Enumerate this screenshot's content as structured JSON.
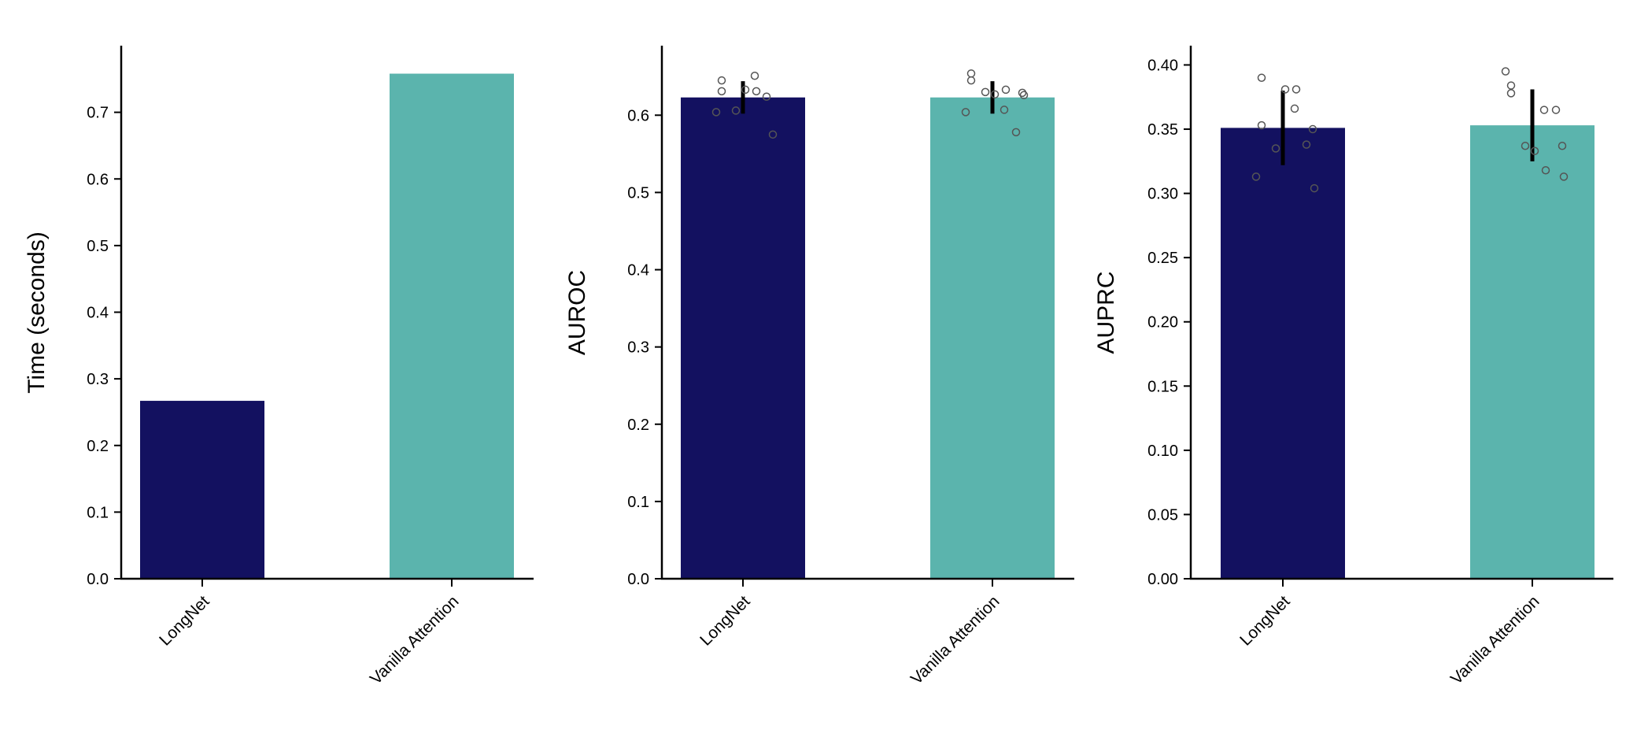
{
  "chart_data": [
    {
      "type": "bar",
      "title": "",
      "xlabel": "",
      "ylabel": "Time (seconds)",
      "ylim": [
        0,
        0.8
      ],
      "yticks": [
        0.0,
        0.1,
        0.2,
        0.3,
        0.4,
        0.5,
        0.6,
        0.7
      ],
      "ytick_labels": [
        "0.0",
        "0.1",
        "0.2",
        "0.3",
        "0.4",
        "0.5",
        "0.6",
        "0.7"
      ],
      "categories": [
        "LongNet",
        "Vanilla Attention"
      ],
      "values": [
        0.267,
        0.758
      ],
      "colors": [
        "#131160",
        "#5bb4ad"
      ]
    },
    {
      "type": "bar",
      "title": "",
      "xlabel": "",
      "ylabel": "AUROC",
      "ylim": [
        0,
        0.69
      ],
      "yticks": [
        0.0,
        0.1,
        0.2,
        0.3,
        0.4,
        0.5,
        0.6
      ],
      "ytick_labels": [
        "0.0",
        "0.1",
        "0.2",
        "0.3",
        "0.4",
        "0.5",
        "0.6"
      ],
      "categories": [
        "LongNet",
        "Vanilla Attention"
      ],
      "values": [
        0.623,
        0.623
      ],
      "errors": [
        0.021,
        0.021
      ],
      "colors": [
        "#131160",
        "#5bb4ad"
      ],
      "points": [
        [
          0.604,
          0.645,
          0.631,
          0.606,
          0.633,
          0.651,
          0.631,
          0.624,
          0.575
        ],
        [
          0.604,
          0.645,
          0.654,
          0.63,
          0.627,
          0.607,
          0.633,
          0.578,
          0.629,
          0.626
        ]
      ]
    },
    {
      "type": "bar",
      "title": "",
      "xlabel": "",
      "ylabel": "AUPRC",
      "ylim": [
        0,
        0.415
      ],
      "yticks": [
        0.0,
        0.05,
        0.1,
        0.15,
        0.2,
        0.25,
        0.3,
        0.35,
        0.4
      ],
      "ytick_labels": [
        "0.00",
        "0.05",
        "0.10",
        "0.15",
        "0.20",
        "0.25",
        "0.30",
        "0.35",
        "0.40"
      ],
      "categories": [
        "LongNet",
        "Vanilla Attention"
      ],
      "values": [
        0.351,
        0.353
      ],
      "errors": [
        0.029,
        0.028
      ],
      "colors": [
        "#131160",
        "#5bb4ad"
      ],
      "points": [
        [
          0.313,
          0.39,
          0.353,
          0.335,
          0.381,
          0.366,
          0.381,
          0.338,
          0.35,
          0.304
        ],
        [
          0.395,
          0.378,
          0.384,
          0.337,
          0.333,
          0.365,
          0.318,
          0.365,
          0.337,
          0.313
        ]
      ]
    }
  ]
}
